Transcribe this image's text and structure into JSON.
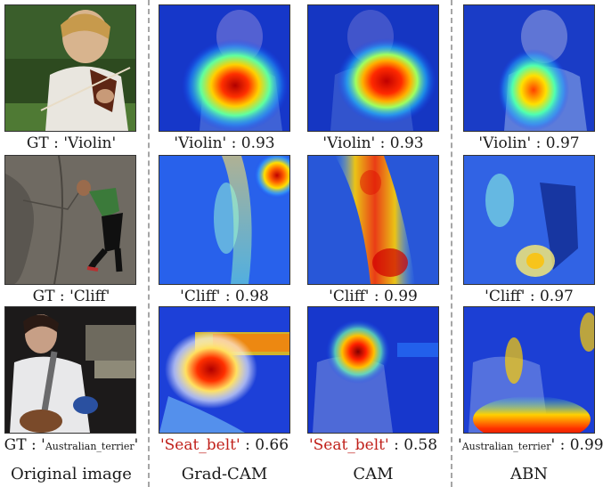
{
  "columns": [
    {
      "label": "Original image"
    },
    {
      "label": "Grad-CAM"
    },
    {
      "label": "CAM"
    },
    {
      "label": "ABN"
    }
  ],
  "rows": [
    {
      "captions": [
        {
          "prefix": "GT : ",
          "cls": "'Violin'",
          "score": ""
        },
        {
          "prefix": "",
          "cls": "'Violin'",
          "score": " : 0.93"
        },
        {
          "prefix": "",
          "cls": "'Violin'",
          "score": " : 0.93"
        },
        {
          "prefix": "",
          "cls": "'Violin'",
          "score": " : 0.97"
        }
      ]
    },
    {
      "captions": [
        {
          "prefix": "GT : ",
          "cls": "'Cliff'",
          "score": ""
        },
        {
          "prefix": "",
          "cls": "'Cliff'",
          "score": " : 0.98"
        },
        {
          "prefix": "",
          "cls": "'Cliff'",
          "score": " : 0.99"
        },
        {
          "prefix": "",
          "cls": "'Cliff'",
          "score": " : 0.97"
        }
      ]
    },
    {
      "captions": [
        {
          "prefix": "GT : ",
          "q1": "'",
          "cls_small": "Australian_terrier",
          "q2": "'",
          "score": ""
        },
        {
          "prefix": "",
          "red": "'Seat_belt'",
          "score": " : 0.66"
        },
        {
          "prefix": "",
          "red": "'Seat_belt'",
          "score": " : 0.58"
        },
        {
          "prefix": "",
          "q1": "'",
          "cls_small": "Australian_terrier",
          "q2": "'",
          "score": " : 0.99"
        }
      ]
    }
  ],
  "colors": {
    "misclassified": "#c0201a",
    "divider": "#a6a6a6"
  }
}
